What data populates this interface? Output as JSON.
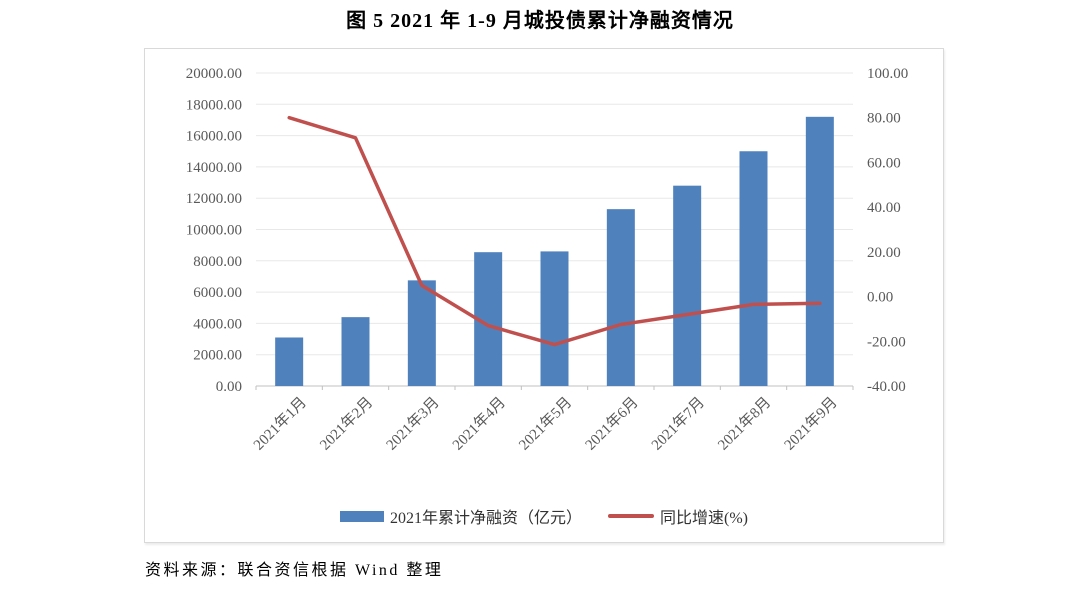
{
  "title": "图 5  2021 年 1-9 月城投债累计净融资情况",
  "source": "资料来源：联合资信根据 Wind 整理",
  "colors": {
    "bar": "#4f81bd",
    "line": "#c0504d",
    "grid": "#e8e8e8",
    "axis": "#c0c0c0",
    "tick_text": "#595959"
  },
  "chart_data": {
    "type": "bar",
    "title": "图 5  2021 年 1-9 月城投债累计净融资情况",
    "categories": [
      "2021年1月",
      "2021年2月",
      "2021年3月",
      "2021年4月",
      "2021年5月",
      "2021年6月",
      "2021年7月",
      "2021年8月",
      "2021年9月"
    ],
    "series": [
      {
        "name": "2021年累计净融资（亿元）",
        "type": "bar",
        "axis": "left",
        "color": "#4f81bd",
        "values": [
          3100,
          4400,
          6750,
          8550,
          8600,
          11300,
          12800,
          15000,
          17200
        ]
      },
      {
        "name": "同比增速(%)",
        "type": "line",
        "axis": "right",
        "color": "#c0504d",
        "values": [
          80,
          71,
          5,
          -13,
          -21.5,
          -12.5,
          -8,
          -3.5,
          -3
        ]
      }
    ],
    "left_axis": {
      "min": 0,
      "max": 20000,
      "step": 2000,
      "ticks": [
        "20000.00",
        "18000.00",
        "16000.00",
        "14000.00",
        "12000.00",
        "10000.00",
        "8000.00",
        "6000.00",
        "4000.00",
        "2000.00",
        "0.00"
      ]
    },
    "right_axis": {
      "min": -40,
      "max": 100,
      "step": 20,
      "ticks": [
        "100.00",
        "80.00",
        "60.00",
        "40.00",
        "20.00",
        "0.00",
        "-20.00",
        "-40.00"
      ]
    },
    "grid": true,
    "legend_position": "bottom"
  }
}
